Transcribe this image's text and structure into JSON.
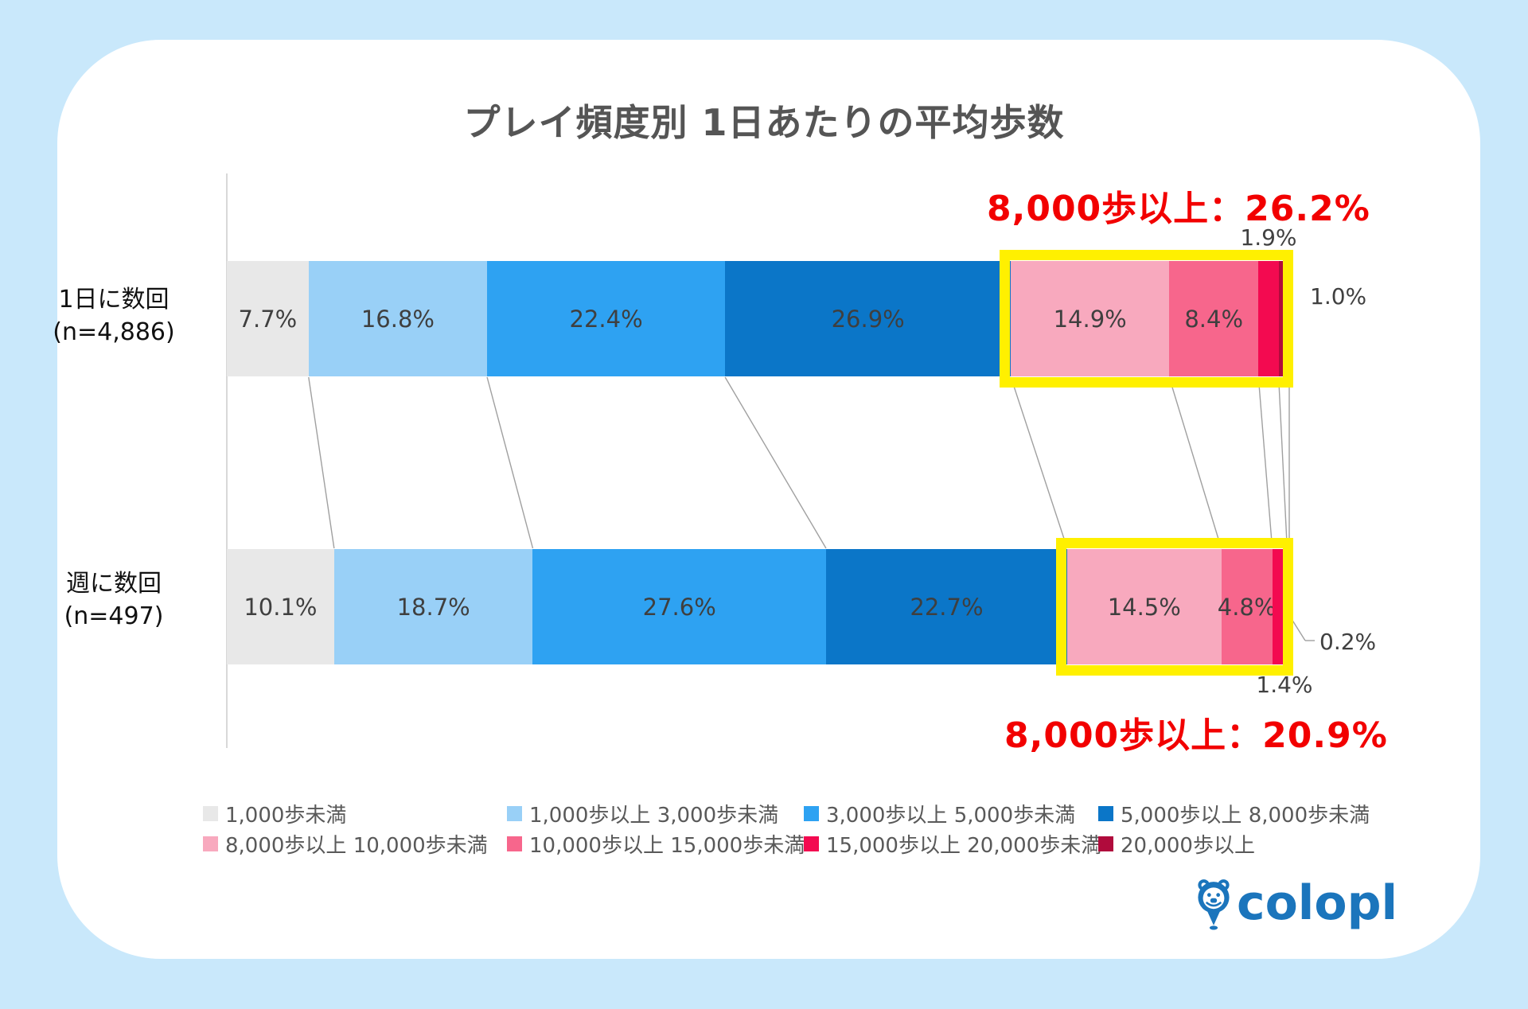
{
  "page": {
    "background_color": "#c9e8fb",
    "card_color": "#ffffff",
    "highlight_color": "#fff000"
  },
  "chart_data": {
    "type": "bar",
    "orientation": "horizontal",
    "stacked": true,
    "unit": "%",
    "xlim": [
      0,
      100
    ],
    "title": "プレイ頻度別 1日あたりの平均歩数",
    "categories": [
      {
        "label": "1日に数回",
        "n_label": "(n=4,886)"
      },
      {
        "label": "週に数回",
        "n_label": "(n=497)"
      }
    ],
    "series": [
      {
        "name": "1,000歩未満",
        "color": "#e8e8e8",
        "values": [
          7.7,
          10.1
        ]
      },
      {
        "name": "1,000歩以上 3,000歩未満",
        "color": "#99d0f7",
        "values": [
          16.8,
          18.7
        ]
      },
      {
        "name": "3,000歩以上 5,000歩未満",
        "color": "#2ea2f2",
        "values": [
          22.4,
          27.6
        ]
      },
      {
        "name": "5,000歩以上 8,000歩未満",
        "color": "#0b76c8",
        "values": [
          26.9,
          22.7
        ]
      },
      {
        "name": "8,000歩以上 10,000歩未満",
        "color": "#f8a9be",
        "values": [
          14.9,
          14.5
        ]
      },
      {
        "name": "10,000歩以上 15,000歩未満",
        "color": "#f7668c",
        "values": [
          8.4,
          4.8
        ]
      },
      {
        "name": "15,000歩以上 20,000歩未満",
        "color": "#f30a50",
        "values": [
          1.9,
          1.4
        ]
      },
      {
        "name": "20,000歩以上",
        "color": "#b00b3c",
        "values": [
          1.0,
          0.2
        ]
      }
    ],
    "annotations": [
      {
        "text": "8,000歩以上：26.2%",
        "color": "#f20000",
        "refers_to": "1日に数回"
      },
      {
        "text": "8,000歩以上：20.9%",
        "color": "#f20000",
        "refers_to": "週に数回"
      }
    ],
    "highlight": {
      "color": "#fff000",
      "applies_to": "8,000歩以上の全セグメント"
    },
    "legend_position": "bottom",
    "grid": false
  },
  "logo": {
    "text": "colopl",
    "color": "#1b75bc"
  }
}
